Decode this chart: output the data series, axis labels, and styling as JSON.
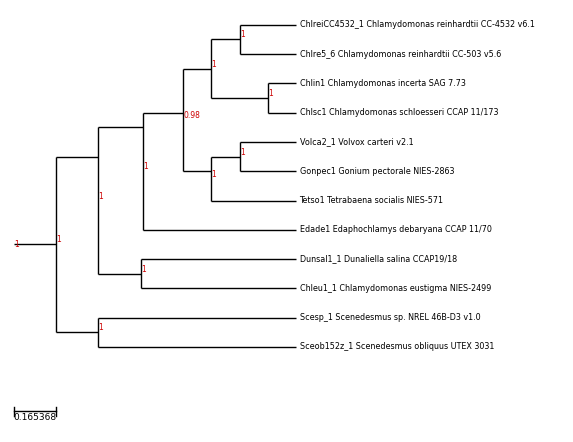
{
  "figsize": [
    5.73,
    4.42
  ],
  "dpi": 100,
  "bg_color": "#ffffff",
  "line_color": "#000000",
  "support_color": "#cc0000",
  "scale_bar_value": "0.165368",
  "taxa": [
    "ChlreiCC4532_1 Chlamydomonas reinhardtii CC-4532 v6.1",
    "Chlre5_6 Chlamydomonas reinhardtii CC-503 v5.6",
    "Chlin1 Chlamydomonas incerta SAG 7.73",
    "Chlsc1 Chlamydomonas schloesseri CCAP 11/173",
    "Volca2_1 Volvox carteri v2.1",
    "Gonpec1 Gonium pectorale NIES-2863",
    "Tetso1 Tetrabaena socialis NIES-571",
    "Edade1 Edaphochlamys debaryana CCAP 11/70",
    "Dunsal1_1 Dunaliella salina CCAP19/18",
    "Chleu1_1 Chlamydomonas eustigma NIES-2499",
    "Scesp_1 Scenedesmus sp. NREL 46B-D3 v1.0",
    "Sceob152z_1 Scenedesmus obliquus UTEX 3031"
  ],
  "font_size_taxa": 5.8,
  "font_size_support": 5.5,
  "font_size_scale": 6.5
}
